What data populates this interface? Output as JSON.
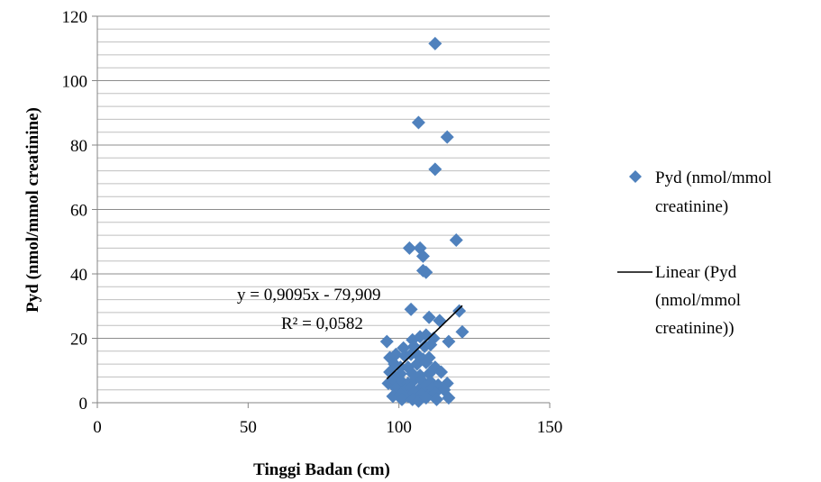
{
  "chart_data": {
    "type": "scatter",
    "xlabel": "Tinggi Badan (cm)",
    "ylabel": "Pyd (nmol/mmol creatinine)",
    "xlim": [
      0,
      150
    ],
    "ylim": [
      0,
      120
    ],
    "xticks": [
      0,
      50,
      100,
      150
    ],
    "yticks": [
      0,
      20,
      40,
      60,
      80,
      100,
      120
    ],
    "minor_gridlines_y": true,
    "legend_position": "right",
    "colors": {
      "marker": "#4F81BD",
      "trendline": "#000000",
      "grid": "#8C8C8C",
      "axis": "#868686"
    },
    "series": [
      {
        "name": "Pyd (nmol/mmol creatinine)",
        "marker": "diamond",
        "points": [
          [
            112,
            111.5
          ],
          [
            106.5,
            87
          ],
          [
            116,
            82.5
          ],
          [
            112,
            72.5
          ],
          [
            119,
            50.5
          ],
          [
            103.5,
            48
          ],
          [
            107,
            48
          ],
          [
            108,
            45.5
          ],
          [
            108,
            41
          ],
          [
            109,
            40.5
          ],
          [
            120,
            28.5
          ],
          [
            104,
            29
          ],
          [
            110,
            26.5
          ],
          [
            113.5,
            25.5
          ],
          [
            121,
            22
          ],
          [
            96,
            19
          ],
          [
            116.5,
            19
          ],
          [
            104.5,
            19.5
          ],
          [
            107,
            20.5
          ],
          [
            109,
            21
          ],
          [
            111.5,
            20
          ],
          [
            101.5,
            17
          ],
          [
            105,
            17.5
          ],
          [
            108.5,
            17.5
          ],
          [
            110.5,
            18
          ],
          [
            97,
            14
          ],
          [
            99,
            15
          ],
          [
            102,
            14.5
          ],
          [
            104,
            15
          ],
          [
            106,
            15
          ],
          [
            108,
            13.5
          ],
          [
            110,
            14
          ],
          [
            98.5,
            12
          ],
          [
            100.5,
            11
          ],
          [
            103,
            11
          ],
          [
            106,
            12
          ],
          [
            109,
            12.5
          ],
          [
            112,
            11
          ],
          [
            97,
            9.5
          ],
          [
            100.5,
            9
          ],
          [
            104.5,
            9
          ],
          [
            107,
            8.5
          ],
          [
            110,
            9
          ],
          [
            114,
            9.5
          ],
          [
            96.5,
            6
          ],
          [
            98.5,
            7
          ],
          [
            101,
            6.5
          ],
          [
            103,
            6
          ],
          [
            105,
            7
          ],
          [
            107.5,
            7
          ],
          [
            110.5,
            6.5
          ],
          [
            113,
            5.5
          ],
          [
            116,
            6
          ],
          [
            99,
            4.5
          ],
          [
            102,
            4
          ],
          [
            104,
            4.5
          ],
          [
            106.5,
            4
          ],
          [
            108.5,
            5
          ],
          [
            111,
            4.5
          ],
          [
            115,
            4
          ],
          [
            98,
            2
          ],
          [
            100.5,
            2.5
          ],
          [
            103,
            2
          ],
          [
            105,
            3
          ],
          [
            107.5,
            2.5
          ],
          [
            109.5,
            2
          ],
          [
            112,
            3
          ],
          [
            101,
            1
          ],
          [
            104.5,
            1
          ],
          [
            106.5,
            0.5
          ],
          [
            109,
            1.5
          ],
          [
            112.5,
            1
          ],
          [
            116.5,
            1.5
          ]
        ]
      }
    ],
    "trendline": {
      "name": "Linear (Pyd (nmol/mmol creatinine))",
      "slope": 0.9095,
      "intercept": -79.909,
      "x_range": [
        96,
        121
      ],
      "equation": "y = 0,9095x - 79,909",
      "r_squared": "R² = 0,0582"
    },
    "legend": {
      "marker_entry": [
        "Pyd (nmol/mmol",
        "creatinine)"
      ],
      "line_entry": [
        "Linear (Pyd",
        "(nmol/mmol",
        "creatinine))"
      ]
    }
  }
}
